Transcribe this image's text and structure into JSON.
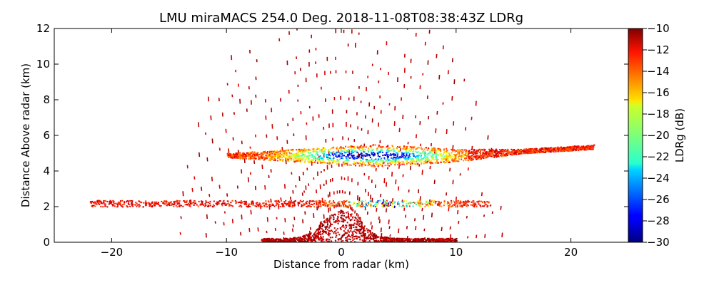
{
  "chart_data": {
    "type": "heatmap",
    "title": "LMU miraMACS 254.0 Deg. 2018-11-08T08:38:43Z  LDRg",
    "xlabel": "Distance from radar (km)",
    "ylabel": "Distance Above radar  (km)",
    "xlim": [
      -25,
      25
    ],
    "ylim": [
      0,
      12
    ],
    "x_ticks": [
      -20,
      -10,
      0,
      10,
      20
    ],
    "x_tick_labels": [
      "−20",
      "−10",
      "0",
      "10",
      "20"
    ],
    "y_ticks": [
      0,
      2,
      4,
      6,
      8,
      10,
      12
    ],
    "y_tick_labels": [
      "0",
      "2",
      "4",
      "6",
      "8",
      "10",
      "12"
    ],
    "grid": false,
    "colorbar": {
      "label": "LDRg (dB)",
      "range": [
        -30,
        -10
      ],
      "ticks": [
        -30,
        -28,
        -26,
        -24,
        -22,
        -20,
        -18,
        -16,
        -14,
        -12,
        -10
      ],
      "tick_labels": [
        "−30",
        "−28",
        "−26",
        "−24",
        "−22",
        "−20",
        "−18",
        "−16",
        "−14",
        "−12",
        "−10"
      ],
      "colormap": "jet"
    },
    "layers": [
      {
        "kind": "cloud",
        "x_range": [
          -10,
          22
        ],
        "center_height": 4.9,
        "thickness": 0.9,
        "min_ldr": -29,
        "max_ldr": -11
      },
      {
        "kind": "band",
        "x_range": [
          -22,
          13
        ],
        "center_height": 2.2,
        "thickness": 0.35,
        "min_ldr": -27,
        "max_ldr": -11
      },
      {
        "kind": "near_surface",
        "x_range": [
          -7,
          10
        ],
        "top_height": 1.6,
        "min_ldr": -12,
        "max_ldr": -10
      }
    ]
  }
}
